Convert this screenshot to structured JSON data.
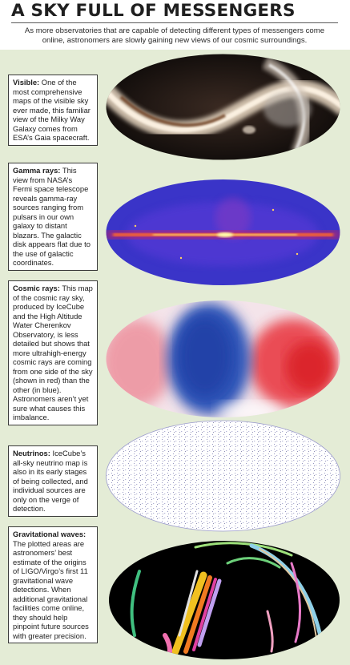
{
  "header": {
    "title": "A SKY FULL OF MESSENGERS",
    "subtitle": "As more observatories that are capable of detecting different types of messengers come online, astronomers are slowly gaining new views of our cosmic surroundings."
  },
  "panels": [
    {
      "label": "Visible:",
      "text": " One of the most comprehensive maps of the visible sky ever made, this familiar view of the Milky Way Galaxy comes from ESA’s Gaia spacecraft."
    },
    {
      "label": "Gamma rays:",
      "text": " This view from NASA’s Fermi space telescope reveals gamma-ray sources ranging from pulsars in our own galaxy to distant blazars. The galactic disk appears flat due to the use of galactic coordinates."
    },
    {
      "label": "Cosmic rays:",
      "text": " This map of the cosmic ray sky, produced by IceCube and the High Altitude Water Cherenkov Observatory, is less detailed but shows that more ultrahigh-energy cosmic rays are coming from one side of the sky (shown in red) than the other (in blue). Astronomers aren’t yet sure what causes this imbalance."
    },
    {
      "label": "Neutrinos:",
      "text": " IceCube’s all-sky neutrino map is also in its early stages of being collected, and individual sources are only on the verge of detection."
    },
    {
      "label": "Gravitational waves:",
      "text": " The plotted areas are astronomers’ best estimate of the origins of LIGO/Virgo’s first 11 gravitational wave detections. When additional gravitational facilities come online, they should help pinpoint future sources with greater precision."
    }
  ],
  "colors": {
    "background": "#e4ecd6",
    "gamma_core": "#fff27a",
    "gamma_field": "#3e3ad0",
    "cosmic_red": "#e8303a",
    "cosmic_blue": "#2f55b8",
    "neutrino_ink": "#3a3a8c",
    "gw_field": "#000000"
  }
}
